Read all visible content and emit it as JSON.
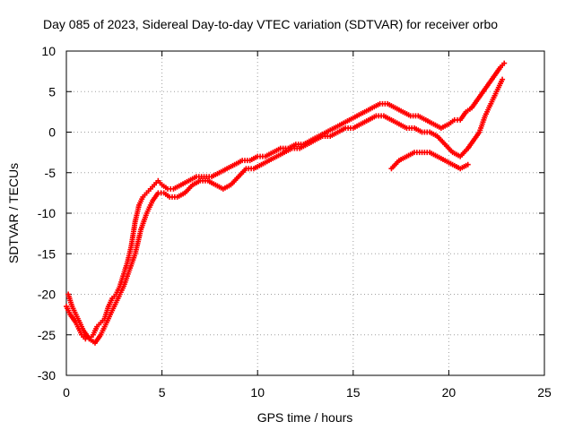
{
  "chart_data": {
    "type": "scatter",
    "title": "Day 085 of 2023, Sidereal Day-to-day VTEC variation (SDTVAR) for receiver orbo",
    "xlabel": "GPS time / hours",
    "ylabel": "SDTVAR / TECUs",
    "xlim": [
      0,
      25
    ],
    "ylim": [
      -30,
      10
    ],
    "xticks": [
      0,
      5,
      10,
      15,
      20,
      25
    ],
    "yticks": [
      10,
      5,
      0,
      -5,
      -10,
      -15,
      -20,
      -25,
      -30
    ],
    "grid": true,
    "marker": "+",
    "series_color": "#ff0000",
    "series": [
      {
        "name": "main arc",
        "x": [
          0.0,
          0.2,
          0.5,
          0.8,
          1.0,
          1.2,
          1.4,
          1.6,
          1.8,
          2.0,
          2.2,
          2.4,
          2.6,
          2.8,
          3.0,
          3.2,
          3.4,
          3.6,
          3.8,
          4.0,
          4.2,
          4.4,
          4.6,
          4.8,
          5.0,
          5.3,
          5.6,
          6.0,
          6.4,
          6.8,
          7.2,
          7.6,
          8.0,
          8.4,
          8.8,
          9.2,
          9.6,
          10.0,
          10.4,
          10.8,
          11.2,
          11.6,
          12.0,
          12.4,
          12.8,
          13.2,
          13.6,
          14.0,
          14.4,
          14.8,
          15.2,
          15.6,
          16.0,
          16.4,
          16.8,
          17.2,
          17.6,
          18.0,
          18.4,
          18.8,
          19.2,
          19.6,
          20.0,
          20.3,
          20.6,
          20.9,
          21.2,
          21.5,
          21.8,
          22.1,
          22.4,
          22.7,
          22.9
        ],
        "y": [
          -21.5,
          -22.5,
          -23.5,
          -25.0,
          -25.5,
          -25.5,
          -25.0,
          -24.0,
          -23.5,
          -23.0,
          -21.5,
          -20.5,
          -20.0,
          -19.0,
          -17.5,
          -16.0,
          -14.0,
          -11.0,
          -9.0,
          -8.0,
          -7.5,
          -7.0,
          -6.5,
          -6.0,
          -6.5,
          -7.0,
          -7.0,
          -6.5,
          -6.0,
          -5.5,
          -5.5,
          -5.5,
          -5.0,
          -4.5,
          -4.0,
          -3.5,
          -3.5,
          -3.0,
          -3.0,
          -2.5,
          -2.0,
          -2.0,
          -1.5,
          -1.5,
          -1.0,
          -0.5,
          0.0,
          0.5,
          1.0,
          1.5,
          2.0,
          2.5,
          3.0,
          3.5,
          3.5,
          3.0,
          2.5,
          2.0,
          2.0,
          1.5,
          1.0,
          0.5,
          1.0,
          1.5,
          1.5,
          2.5,
          3.0,
          4.0,
          5.0,
          6.0,
          7.0,
          8.0,
          8.5
        ]
      },
      {
        "name": "lower arc",
        "x": [
          0.1,
          0.3,
          0.6,
          0.9,
          1.2,
          1.5,
          1.8,
          2.1,
          2.4,
          2.7,
          3.0,
          3.3,
          3.6,
          3.9,
          4.2,
          4.5,
          4.8,
          5.1,
          5.4,
          5.8,
          6.2,
          6.6,
          7.0,
          7.4,
          7.8,
          8.2,
          8.6,
          9.0,
          9.4,
          9.8,
          10.2,
          10.6,
          11.0,
          11.4,
          11.8,
          12.2,
          12.6,
          13.0,
          13.4,
          13.8,
          14.2,
          14.6,
          15.0,
          15.4,
          15.8,
          16.2,
          16.6,
          17.0,
          17.4,
          17.8,
          18.2,
          18.6,
          19.0,
          19.4,
          19.8,
          20.2,
          20.6,
          21.0,
          21.3,
          21.6,
          21.9,
          22.2,
          22.5,
          22.8
        ],
        "y": [
          -20.0,
          -21.5,
          -23.0,
          -24.5,
          -25.5,
          -26.0,
          -25.0,
          -23.5,
          -22.0,
          -20.5,
          -19.0,
          -17.0,
          -15.0,
          -12.0,
          -10.0,
          -8.5,
          -7.5,
          -7.5,
          -8.0,
          -8.0,
          -7.5,
          -6.5,
          -6.0,
          -6.0,
          -6.5,
          -7.0,
          -6.5,
          -5.5,
          -4.5,
          -4.5,
          -4.0,
          -3.5,
          -3.0,
          -2.5,
          -2.0,
          -2.0,
          -1.5,
          -1.0,
          -0.5,
          -0.5,
          0.0,
          0.5,
          0.5,
          1.0,
          1.5,
          2.0,
          2.0,
          1.5,
          1.0,
          0.5,
          0.5,
          0.0,
          0.0,
          -0.5,
          -1.5,
          -2.5,
          -3.0,
          -2.0,
          -1.0,
          0.0,
          2.0,
          3.5,
          5.0,
          6.5
        ]
      },
      {
        "name": "offset arc",
        "x": [
          17.0,
          17.4,
          17.8,
          18.2,
          18.6,
          19.0,
          19.4,
          19.8,
          20.2,
          20.6,
          21.0
        ],
        "y": [
          -4.5,
          -3.5,
          -3.0,
          -2.5,
          -2.5,
          -2.5,
          -3.0,
          -3.5,
          -4.0,
          -4.5,
          -4.0
        ]
      }
    ]
  }
}
